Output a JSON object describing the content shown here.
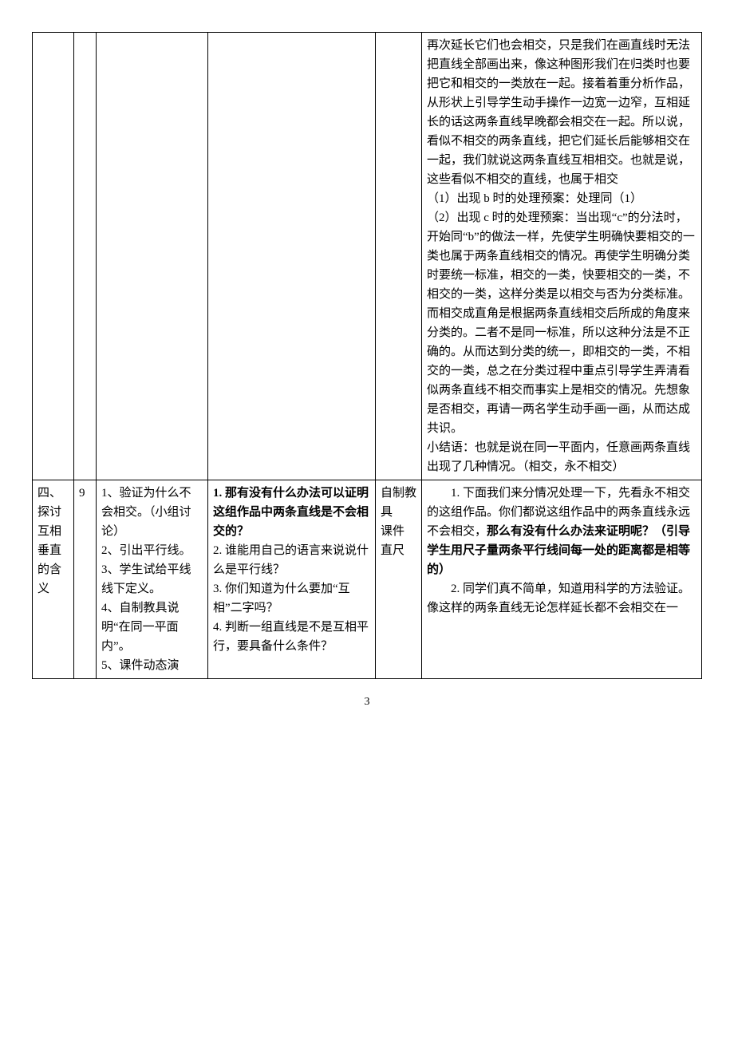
{
  "row1": {
    "col6": "再次延长它们也会相交，只是我们在画直线时无法把直线全部画出来，像这种图形我们在归类时也要把它和相交的一类放在一起。接着着重分析作品，从形状上引导学生动手操作一边宽一边窄，互相延长的话这两条直线早晚都会相交在一起。所以说，看似不相交的两条直线，把它们延长后能够相交在一起，我们就说这两条直线互相相交。也就是说，这些看似不相交的直线，也属于相交\n（1）出现 b 时的处理预案：处理同（1）\n（2）出现 c 时的处理预案：当出现“c”的分法时，开始同“b”的做法一样，先使学生明确快要相交的一类也属于两条直线相交的情况。再使学生明确分类时要统一标准，相交的一类，快要相交的一类，不相交的一类，这样分类是以相交与否为分类标准。而相交成直角是根据两条直线相交后所成的角度来分类的。二者不是同一标准，所以这种分法是不正确的。从而达到分类的统一，即相交的一类，不相交的一类，总之在分类过程中重点引导学生弄清看似两条直线不相交而事实上是相交的情况。先想象是否相交，再请一两名学生动手画一画，从而达成共识。\n小结语：也就是说在同一平面内，任意画两条直线出现了几种情况。（相交，永不相交）"
  },
  "row2": {
    "col1": "四、探讨互相垂直的含义",
    "col2": "9",
    "col3": "1、验证为什么不会相交。（小组讨论）\n2、引出平行线。\n3、学生试给平线线下定义。\n4、自制教具说明“在同一平面内”。\n5、课件动态演",
    "col4_q1": "1. 那有没有什么办法可以证明这组作品中两条直线是不会相交的？",
    "col4_rest": "2. 谁能用自己的语言来说说什么是平行线？\n3. 你们知道为什么要加“互相”二字吗？\n4. 判断一组直线是不是互相平行，要具备什么条件？",
    "col5": "自制教具\n课件\n直尺",
    "col6_p1_a": "　　1. 下面我们来分情况处理一下，先看永不相交的这组作品。你们都说这组作品中的两条直线永远不会相交，",
    "col6_p1_b": "那么有没有什么办法来证明呢？（引导学生用尺子量两条平行线间每一处的距离都是相等的）",
    "col6_p2": "　　2. 同学们真不简单，知道用科学的方法验证。像这样的两条直线无论怎样延长都不会相交在一"
  },
  "pageNumber": "3"
}
